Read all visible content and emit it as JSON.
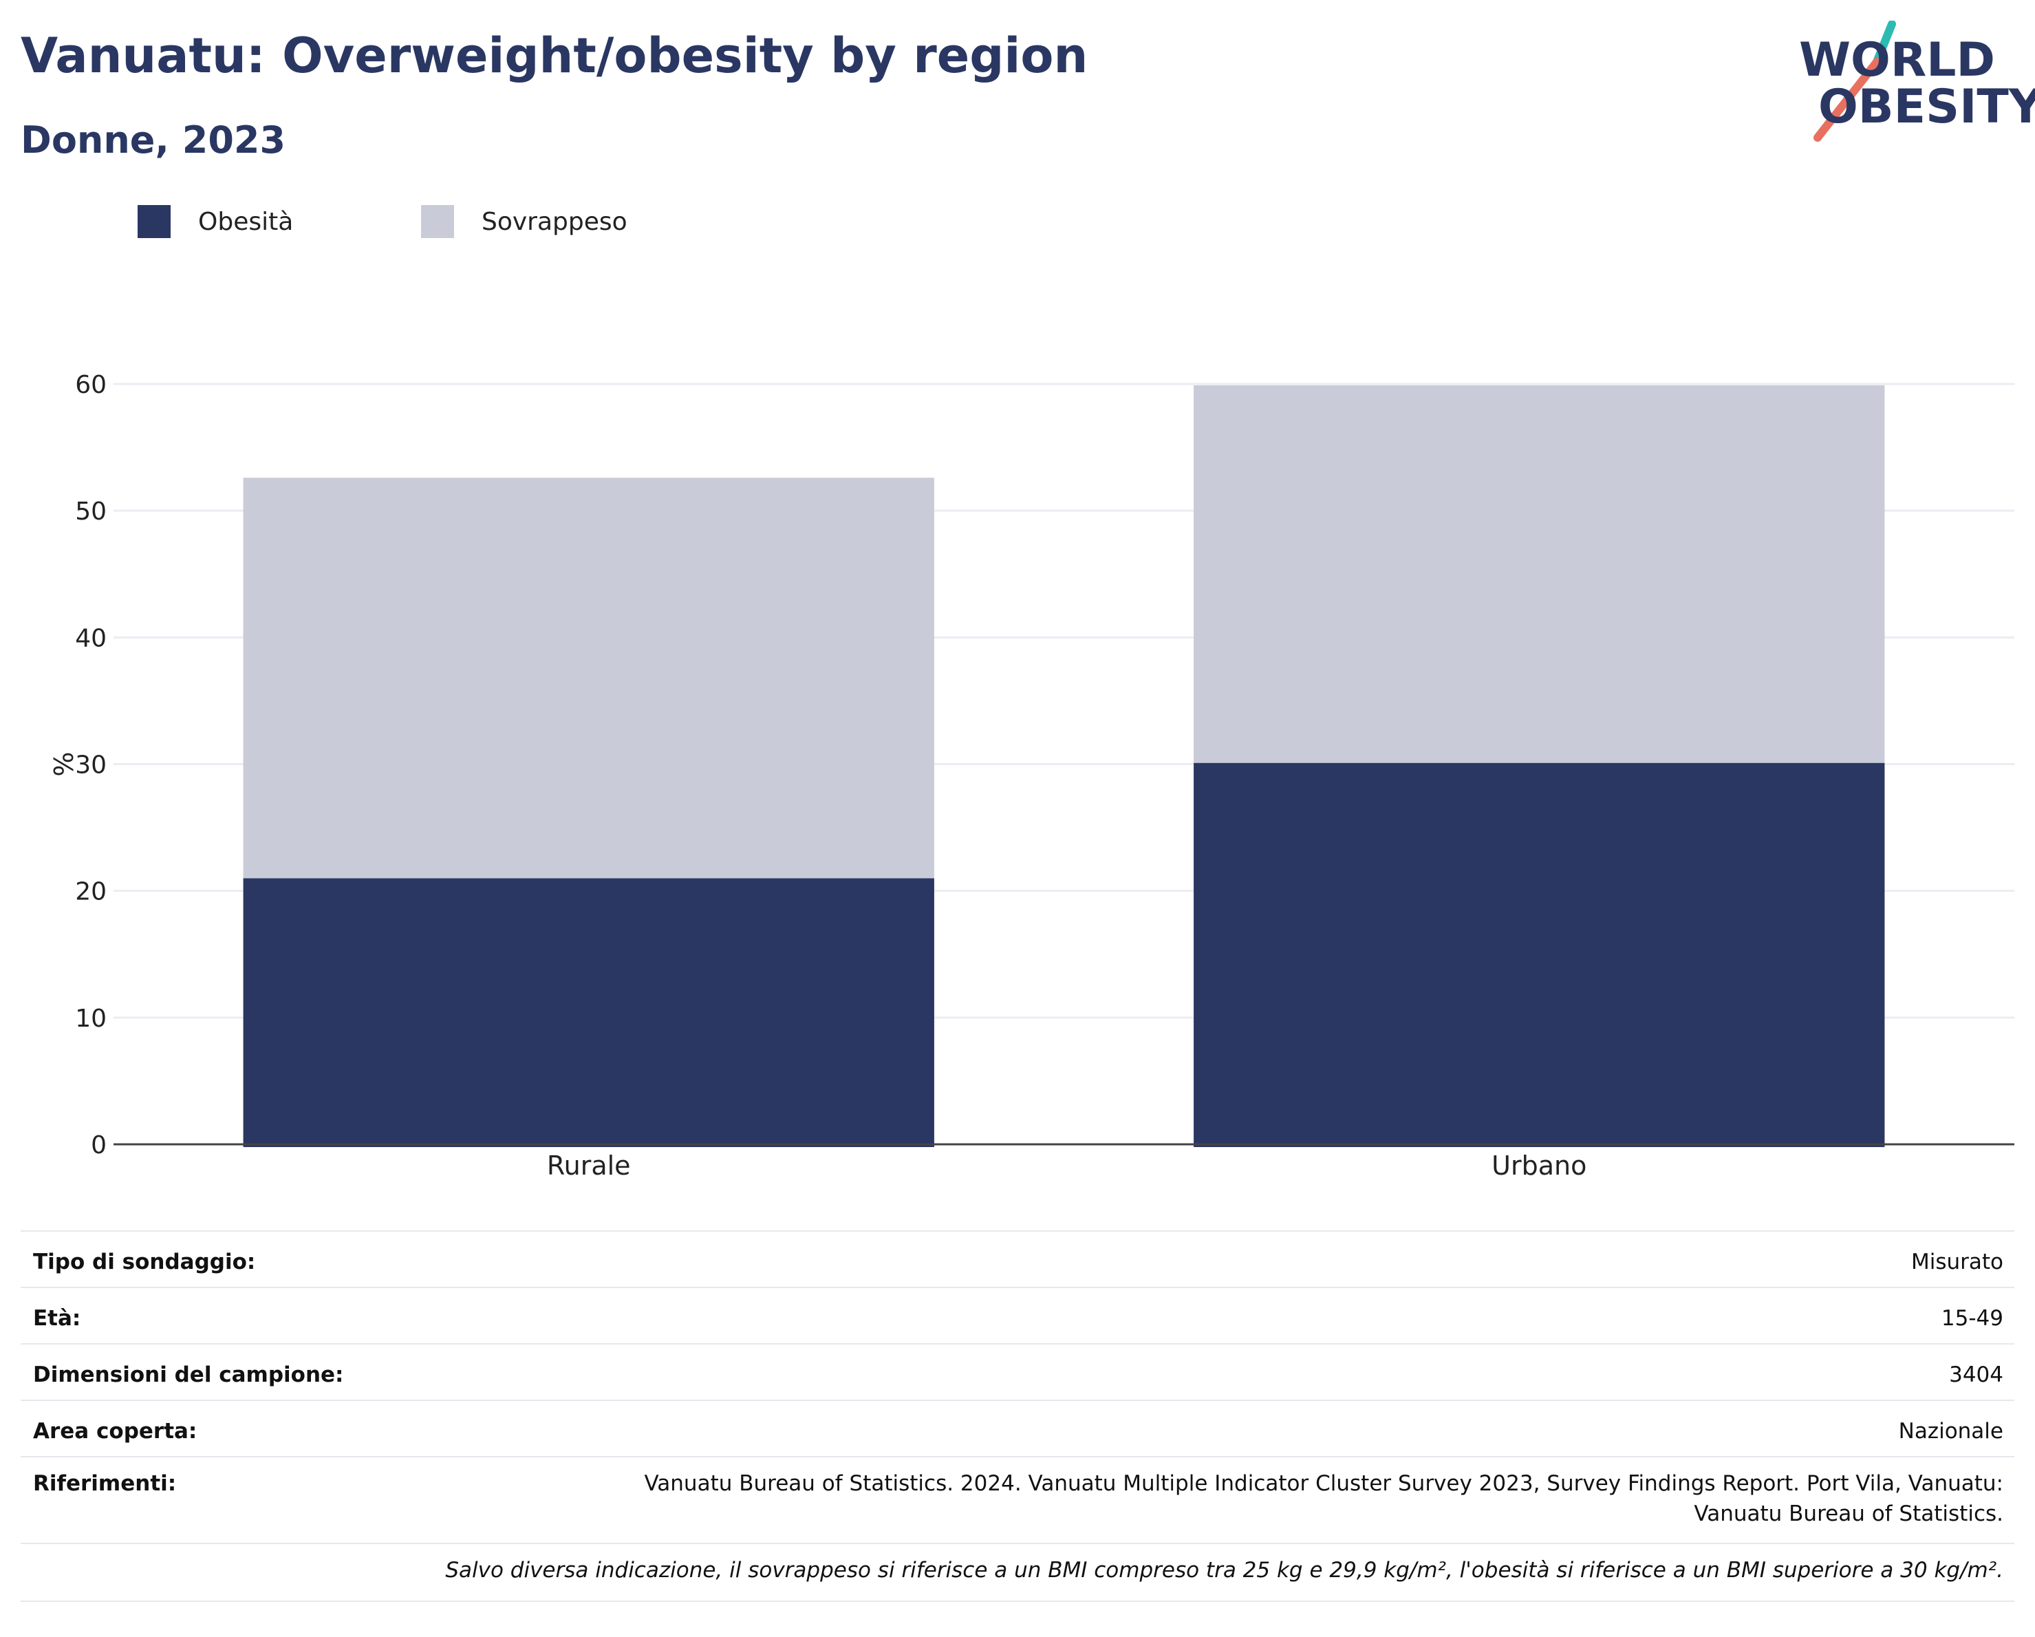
{
  "header": {
    "title": "Vanuatu: Overweight/obesity by region",
    "subtitle": "Donne, 2023"
  },
  "logo": {
    "line1": "WORLD",
    "line2": "OBESITY",
    "colors": {
      "navy": "#2a3763",
      "teal": "#2bbbb3",
      "coral": "#e8705f"
    }
  },
  "legend": [
    {
      "label": "Obesità",
      "color": "#2a3763"
    },
    {
      "label": "Sovrappeso",
      "color": "#c9ccd8"
    }
  ],
  "chart_data": {
    "type": "bar",
    "stacked": true,
    "categories": [
      "Rurale",
      "Urbano"
    ],
    "series": [
      {
        "name": "Obesità",
        "values": [
          21.0,
          30.1
        ],
        "color": "#2a3763"
      },
      {
        "name": "Sovrappeso",
        "values": [
          31.6,
          29.8
        ],
        "color": "#c9ccd8"
      }
    ],
    "ylabel": "%",
    "ylim": [
      0,
      60
    ],
    "yticks": [
      0,
      10,
      20,
      30,
      40,
      50,
      60
    ],
    "grid": true,
    "legend_position": "top-left"
  },
  "info": [
    {
      "key": "Tipo di sondaggio:",
      "value": "Misurato"
    },
    {
      "key": "Età:",
      "value": "15-49"
    },
    {
      "key": "Dimensioni del campione:",
      "value": "3404"
    },
    {
      "key": "Area coperta:",
      "value": "Nazionale"
    },
    {
      "key": "Riferimenti:",
      "value_lines": [
        "Vanuatu Bureau of Statistics. 2024. Vanuatu Multiple Indicator Cluster Survey 2023, Survey Findings Report. Port Vila, Vanuatu:",
        "Vanuatu Bureau of Statistics."
      ]
    }
  ],
  "note": "Salvo diversa indicazione, il sovrappeso si riferisce a un BMI compreso tra 25 kg e 29,9 kg/m², l'obesità si riferisce a un BMI superiore a 30 kg/m²."
}
